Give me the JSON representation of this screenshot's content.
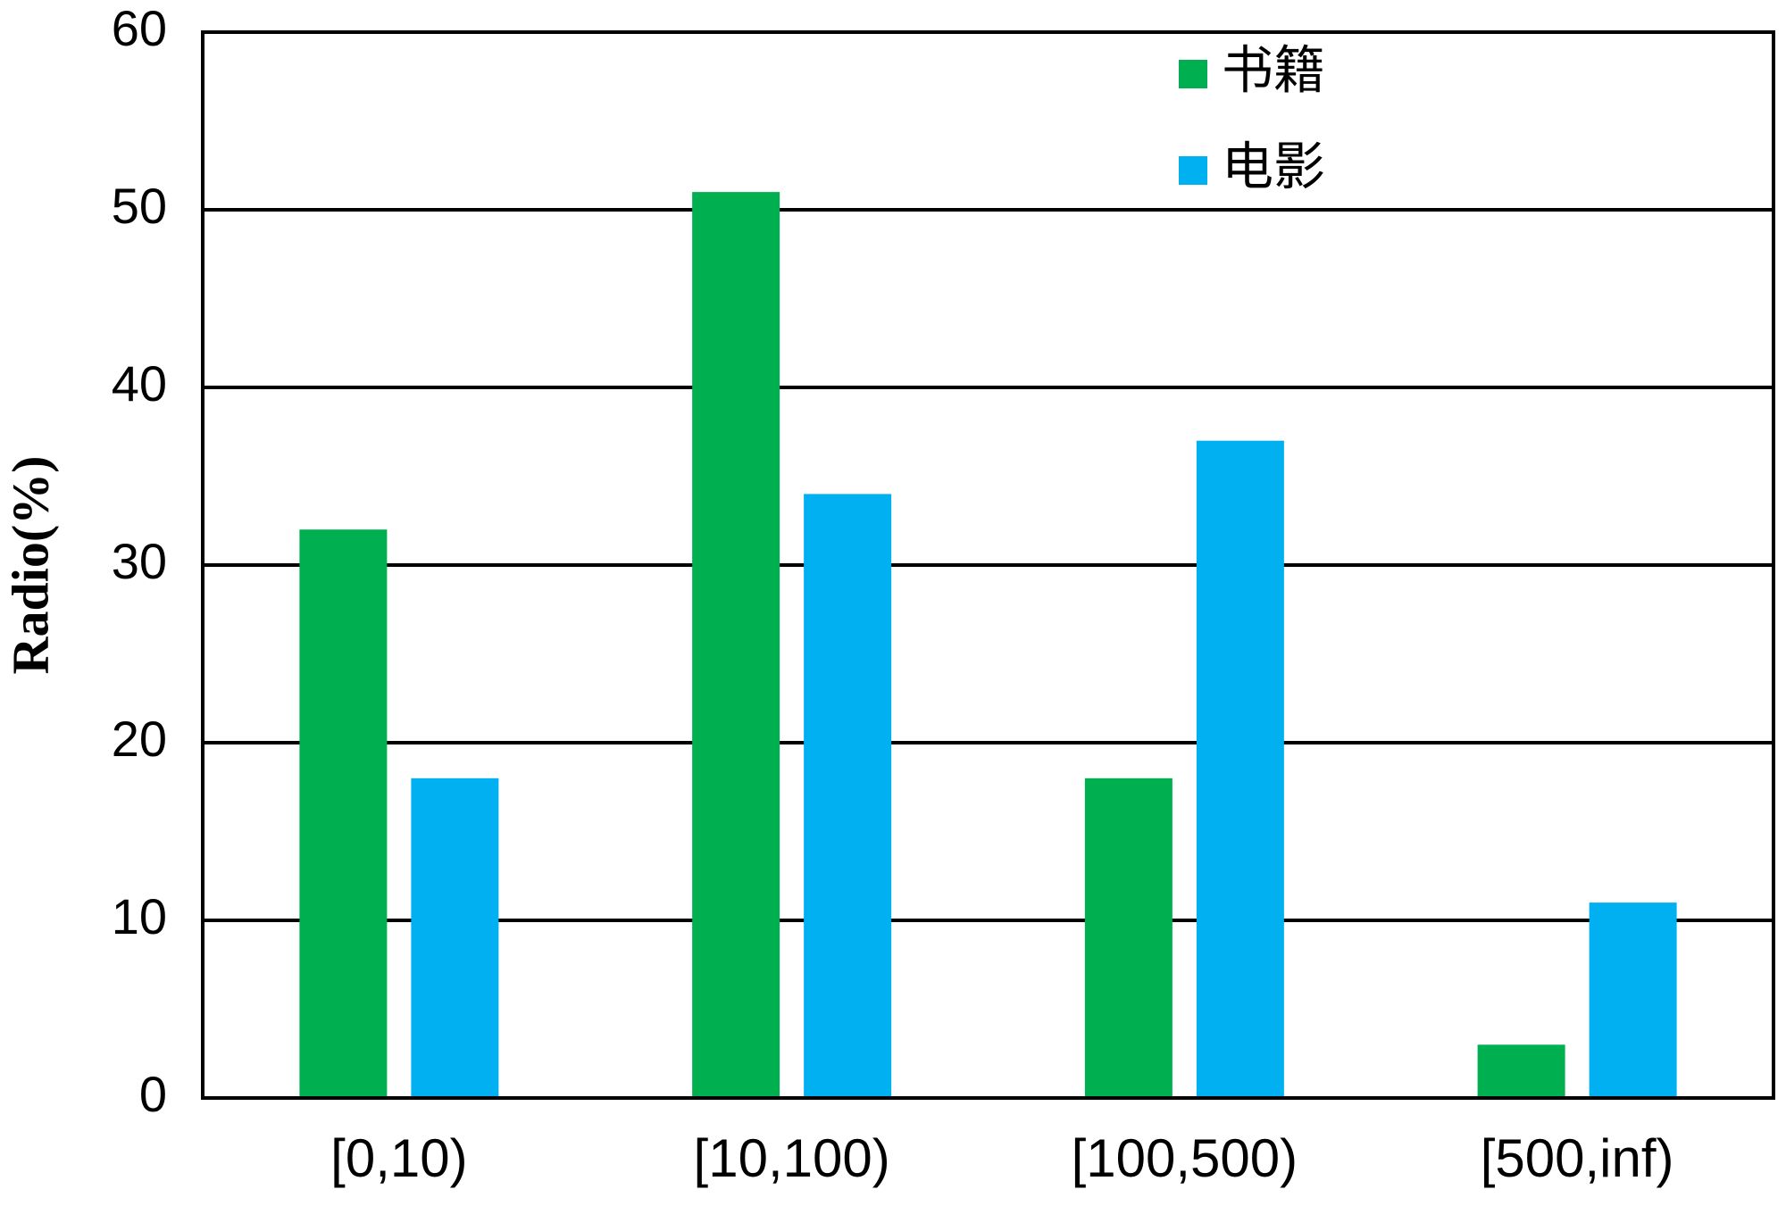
{
  "chart_data": {
    "type": "bar",
    "y_label": "Radio(%)",
    "categories": [
      "[0,10)",
      "[10,100)",
      "[100,500)",
      "[500,inf)"
    ],
    "series": [
      {
        "name": "书籍",
        "color": "#00b050",
        "values": [
          32,
          51,
          18,
          3
        ]
      },
      {
        "name": "电影",
        "color": "#00b0f0",
        "values": [
          18,
          34,
          37,
          11
        ]
      }
    ],
    "ylim": [
      0,
      60
    ],
    "yticks": [
      0,
      10,
      20,
      30,
      40,
      50,
      60
    ],
    "grid": true,
    "legend": "top"
  }
}
